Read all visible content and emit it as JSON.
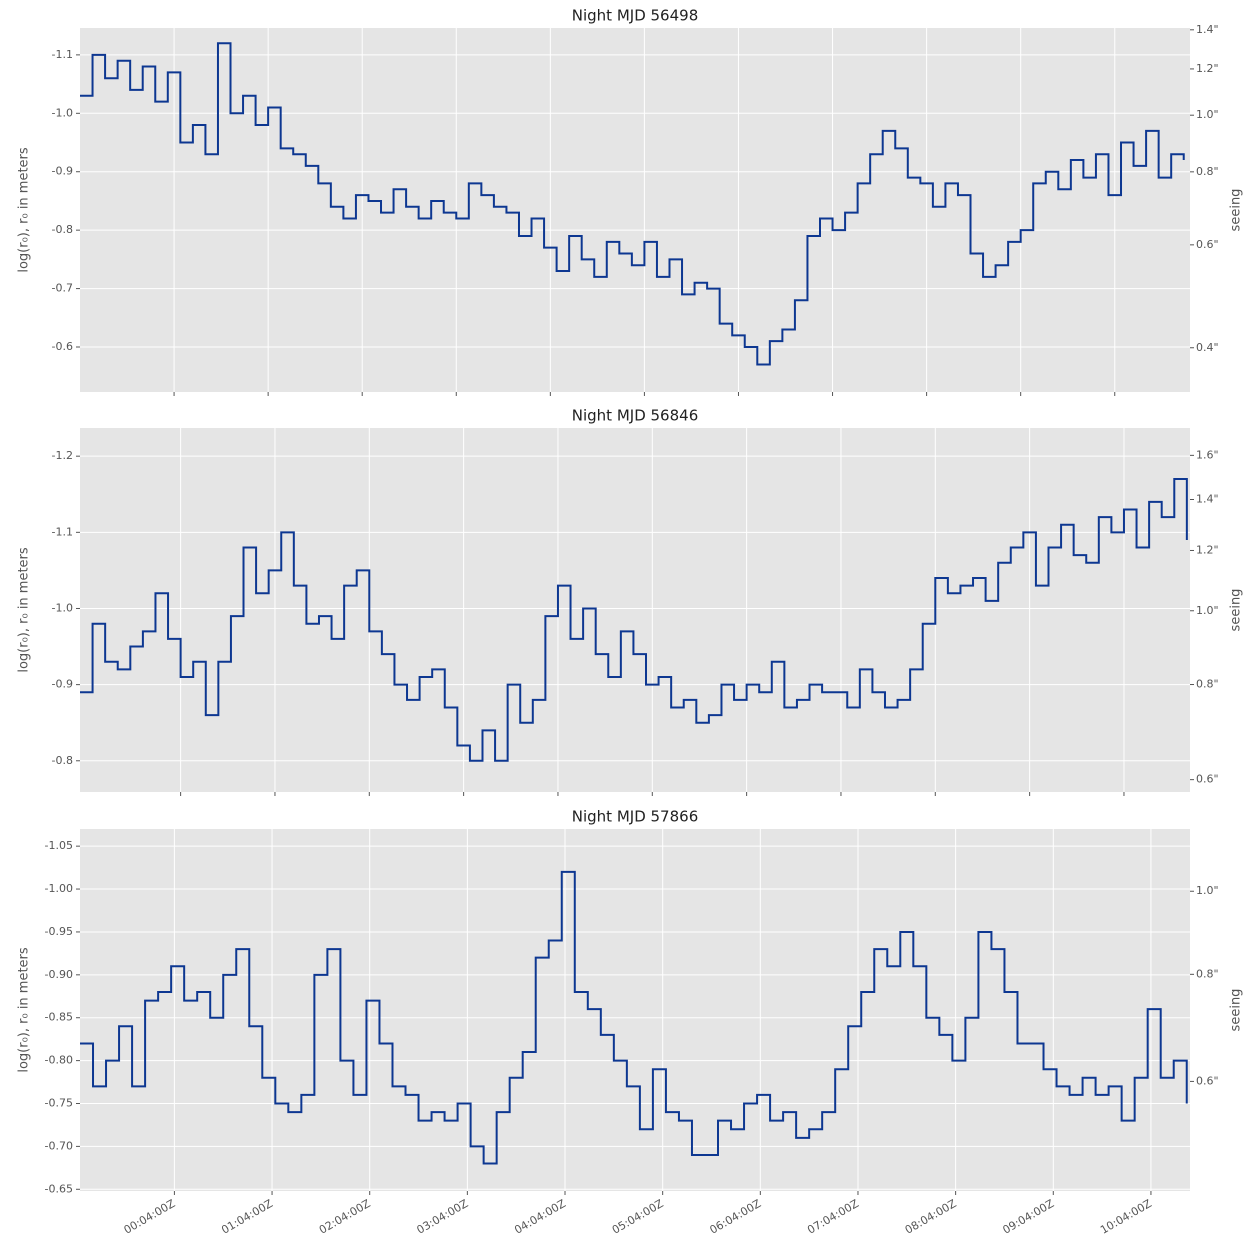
{
  "chart_data": [
    {
      "type": "line",
      "title": "Night MJD 56498",
      "ylabel": "log(r₀), r₀ in meters",
      "y2label": "seeing",
      "color": "#0d3791",
      "grid": true,
      "xlim": [
        -56,
        652
      ],
      "xticks": [
        4,
        64,
        124,
        184,
        244,
        304,
        364,
        424,
        484,
        544,
        604
      ],
      "ylim": [
        -0.523,
        -1.146
      ],
      "yticks": [
        -1.1,
        {
          "value": -1.0,
          "label": "-1.0"
        },
        -0.9,
        -0.8,
        -0.7,
        -0.6
      ],
      "y2scale": "log",
      "y2lim": [
        0.336,
        1.41
      ],
      "y2ticks": [
        {
          "value": 1.4,
          "label": "1.4\""
        },
        {
          "value": 1.2,
          "label": "1.2\""
        },
        {
          "value": 1.0,
          "label": "1.0\""
        },
        {
          "value": 0.8,
          "label": "0.8\""
        },
        {
          "value": 0.6,
          "label": "0.6\""
        },
        {
          "value": 0.4,
          "label": "0.4\""
        }
      ],
      "x": [
        -56,
        -48,
        -40,
        -32,
        -24,
        -16,
        -8,
        0,
        8,
        16,
        24,
        32,
        40,
        48,
        56,
        64,
        72,
        80,
        88,
        96,
        104,
        112,
        120,
        128,
        136,
        144,
        152,
        160,
        168,
        176,
        184,
        192,
        200,
        208,
        216,
        224,
        232,
        240,
        248,
        256,
        264,
        272,
        280,
        288,
        296,
        304,
        312,
        320,
        328,
        336,
        344,
        352,
        360,
        368,
        376,
        384,
        392,
        400,
        408,
        416,
        424,
        432,
        440,
        448,
        456,
        464,
        472,
        480,
        488,
        496,
        504,
        512,
        520,
        528,
        536,
        544,
        552,
        560,
        568,
        576,
        584,
        592,
        600,
        608,
        616,
        624,
        632,
        640,
        648
      ],
      "values": [
        -1.03,
        -1.1,
        -1.06,
        -1.09,
        -1.04,
        -1.08,
        -1.02,
        -1.07,
        -0.95,
        -0.98,
        -0.93,
        -1.12,
        -1.0,
        -1.03,
        -0.98,
        -1.01,
        -0.94,
        -0.93,
        -0.91,
        -0.88,
        -0.84,
        -0.82,
        -0.86,
        -0.85,
        -0.83,
        -0.87,
        -0.84,
        -0.82,
        -0.85,
        -0.83,
        -0.82,
        -0.88,
        -0.86,
        -0.84,
        -0.83,
        -0.79,
        -0.82,
        -0.77,
        -0.73,
        -0.79,
        -0.75,
        -0.72,
        -0.78,
        -0.76,
        -0.74,
        -0.78,
        -0.72,
        -0.75,
        -0.69,
        -0.71,
        -0.7,
        -0.64,
        -0.62,
        -0.6,
        -0.57,
        -0.61,
        -0.63,
        -0.68,
        -0.79,
        -0.82,
        -0.8,
        -0.83,
        -0.88,
        -0.93,
        -0.97,
        -0.94,
        -0.89,
        -0.88,
        -0.84,
        -0.88,
        -0.86,
        -0.76,
        -0.72,
        -0.74,
        -0.78,
        -0.8,
        -0.88,
        -0.9,
        -0.87,
        -0.92,
        -0.89,
        -0.93,
        -0.86,
        -0.95,
        -0.91,
        -0.97,
        -0.89,
        -0.93,
        -0.92
      ]
    },
    {
      "type": "line",
      "title": "Night MJD 56846",
      "ylabel": "log(r₀), r₀ in meters",
      "y2label": "seeing",
      "color": "#0d3791",
      "grid": true,
      "xlim": [
        -60,
        646
      ],
      "xticks": [
        4,
        64,
        124,
        184,
        244,
        304,
        364,
        424,
        484,
        544,
        604
      ],
      "ylim": [
        -0.759,
        -1.237
      ],
      "yticks": [
        -1.2,
        -1.1,
        {
          "value": -1.0,
          "label": "-1.0"
        },
        -0.9,
        -0.8
      ],
      "y2scale": "log",
      "y2lim": [
        0.578,
        1.738
      ],
      "y2ticks": [
        {
          "value": 1.6,
          "label": "1.6\""
        },
        {
          "value": 1.4,
          "label": "1.4\""
        },
        {
          "value": 1.2,
          "label": "1.2\""
        },
        {
          "value": 1.0,
          "label": "1.0\""
        },
        {
          "value": 0.8,
          "label": "0.8\""
        },
        {
          "value": 0.6,
          "label": "0.6\""
        }
      ],
      "x": [
        -60,
        -52,
        -44,
        -36,
        -28,
        -20,
        -12,
        -4,
        4,
        12,
        20,
        28,
        36,
        44,
        52,
        60,
        68,
        76,
        84,
        92,
        100,
        108,
        116,
        124,
        132,
        140,
        148,
        156,
        164,
        172,
        180,
        188,
        196,
        204,
        212,
        220,
        228,
        236,
        244,
        252,
        260,
        268,
        276,
        284,
        292,
        300,
        308,
        316,
        324,
        332,
        340,
        348,
        356,
        364,
        372,
        380,
        388,
        396,
        404,
        412,
        420,
        428,
        436,
        444,
        452,
        460,
        468,
        476,
        484,
        492,
        500,
        508,
        516,
        524,
        532,
        540,
        548,
        556,
        564,
        572,
        580,
        588,
        596,
        604,
        612,
        620,
        628,
        636,
        644
      ],
      "values": [
        -0.89,
        -0.98,
        -0.93,
        -0.92,
        -0.95,
        -0.97,
        -1.02,
        -0.96,
        -0.91,
        -0.93,
        -0.86,
        -0.93,
        -0.99,
        -1.08,
        -1.02,
        -1.05,
        -1.1,
        -1.03,
        -0.98,
        -0.99,
        -0.96,
        -1.03,
        -1.05,
        -0.97,
        -0.94,
        -0.9,
        -0.88,
        -0.91,
        -0.92,
        -0.87,
        -0.82,
        -0.8,
        -0.84,
        -0.8,
        -0.9,
        -0.85,
        -0.88,
        -0.99,
        -1.03,
        -0.96,
        -1.0,
        -0.94,
        -0.91,
        -0.97,
        -0.94,
        -0.9,
        -0.91,
        -0.87,
        -0.88,
        -0.85,
        -0.86,
        -0.9,
        -0.88,
        -0.9,
        -0.89,
        -0.93,
        -0.87,
        -0.88,
        -0.9,
        -0.89,
        -0.89,
        -0.87,
        -0.92,
        -0.89,
        -0.87,
        -0.88,
        -0.92,
        -0.98,
        -1.04,
        -1.02,
        -1.03,
        -1.04,
        -1.01,
        -1.06,
        -1.08,
        -1.1,
        -1.03,
        -1.08,
        -1.11,
        -1.07,
        -1.06,
        -1.12,
        -1.1,
        -1.13,
        -1.08,
        -1.14,
        -1.12,
        -1.17,
        -1.09
      ]
    },
    {
      "type": "line",
      "title": "Night MJD 57866",
      "ylabel": "log(r₀), r₀ in meters",
      "y2label": "seeing",
      "color": "#0d3791",
      "grid": true,
      "xlim": [
        -54,
        628
      ],
      "xticks": [
        {
          "value": 4,
          "label": "00:04:00Z"
        },
        {
          "value": 64,
          "label": "01:04:00Z"
        },
        {
          "value": 124,
          "label": "02:04:00Z"
        },
        {
          "value": 184,
          "label": "03:04:00Z"
        },
        {
          "value": 244,
          "label": "04:04:00Z"
        },
        {
          "value": 304,
          "label": "05:04:00Z"
        },
        {
          "value": 364,
          "label": "06:04:00Z"
        },
        {
          "value": 424,
          "label": "07:04:00Z"
        },
        {
          "value": 484,
          "label": "08:04:00Z"
        },
        {
          "value": 544,
          "label": "09:04:00Z"
        },
        {
          "value": 604,
          "label": "10:04:00Z"
        }
      ],
      "ylim": [
        -0.648,
        -1.07
      ],
      "yticks": [
        -1.05,
        {
          "value": -1.0,
          "label": "-1.00"
        },
        -0.95,
        {
          "value": -0.9,
          "label": "-0.90"
        },
        -0.85,
        {
          "value": -0.8,
          "label": "-0.80"
        },
        -0.75,
        {
          "value": -0.7,
          "label": "-0.70"
        },
        -0.65
      ],
      "y2scale": "log",
      "y2lim": [
        0.447,
        1.182
      ],
      "y2ticks": [
        {
          "value": 1.0,
          "label": "1.0\""
        },
        {
          "value": 0.8,
          "label": "0.8\""
        },
        {
          "value": 0.6,
          "label": "0.6\""
        }
      ],
      "x": [
        -54,
        -46,
        -38,
        -30,
        -22,
        -14,
        -6,
        2,
        10,
        18,
        26,
        34,
        42,
        50,
        58,
        66,
        74,
        82,
        90,
        98,
        106,
        114,
        122,
        130,
        138,
        146,
        154,
        162,
        170,
        178,
        186,
        194,
        202,
        210,
        218,
        226,
        234,
        242,
        250,
        258,
        266,
        274,
        282,
        290,
        298,
        306,
        314,
        322,
        330,
        338,
        346,
        354,
        362,
        370,
        378,
        386,
        394,
        402,
        410,
        418,
        426,
        434,
        442,
        450,
        458,
        466,
        474,
        482,
        490,
        498,
        506,
        514,
        522,
        530,
        538,
        546,
        554,
        562,
        570,
        578,
        586,
        594,
        602,
        610,
        618,
        626
      ],
      "values": [
        -0.82,
        -0.77,
        -0.8,
        -0.84,
        -0.77,
        -0.87,
        -0.88,
        -0.91,
        -0.87,
        -0.88,
        -0.85,
        -0.9,
        -0.93,
        -0.84,
        -0.78,
        -0.75,
        -0.74,
        -0.76,
        -0.9,
        -0.93,
        -0.8,
        -0.76,
        -0.87,
        -0.82,
        -0.77,
        -0.76,
        -0.73,
        -0.74,
        -0.73,
        -0.75,
        -0.7,
        -0.68,
        -0.74,
        -0.78,
        -0.81,
        -0.92,
        -0.94,
        -1.02,
        -0.88,
        -0.86,
        -0.83,
        -0.8,
        -0.77,
        -0.72,
        -0.79,
        -0.74,
        -0.73,
        -0.69,
        -0.69,
        -0.73,
        -0.72,
        -0.75,
        -0.76,
        -0.73,
        -0.74,
        -0.71,
        -0.72,
        -0.74,
        -0.79,
        -0.84,
        -0.88,
        -0.93,
        -0.91,
        -0.95,
        -0.91,
        -0.85,
        -0.83,
        -0.8,
        -0.85,
        -0.95,
        -0.93,
        -0.88,
        -0.82,
        -0.82,
        -0.79,
        -0.77,
        -0.76,
        -0.78,
        -0.76,
        -0.77,
        -0.73,
        -0.78,
        -0.86,
        -0.78,
        -0.8,
        -0.75
      ]
    }
  ]
}
